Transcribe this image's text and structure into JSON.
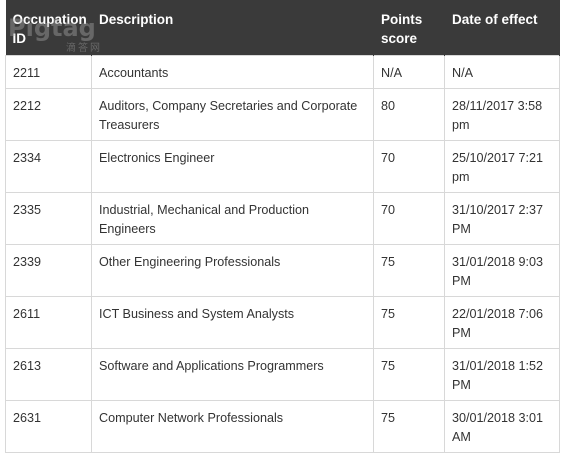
{
  "table": {
    "headers": [
      "Occupation ID",
      "Description",
      "Points score",
      "Date of effect"
    ],
    "rows": [
      {
        "id": "2211",
        "description": "Accountants",
        "points": "N/A",
        "date": "N/A"
      },
      {
        "id": "2212",
        "description": "Auditors, Company Secretaries and Corporate Treasurers",
        "points": "80",
        "date": "28/11/2017 3:58 pm"
      },
      {
        "id": "2334",
        "description": "Electronics Engineer",
        "points": "70",
        "date": "25/10/2017 7:21 pm"
      },
      {
        "id": "2335",
        "description": "Industrial, Mechanical and Production Engineers",
        "points": "70",
        "date": "31/10/2017 2:37 PM"
      },
      {
        "id": "2339",
        "description": "Other Engineering Professionals",
        "points": "75",
        "date": "31/01/2018 9:03 PM"
      },
      {
        "id": "2611",
        "description": "ICT Business and System Analysts",
        "points": "75",
        "date": "22/01/2018 7:06 PM"
      },
      {
        "id": "2613",
        "description": "Software and Applications Programmers",
        "points": "75",
        "date": "31/01/2018 1:52 PM"
      },
      {
        "id": "2631",
        "description": "Computer Network Professionals",
        "points": "75",
        "date": "30/01/2018 3:01 AM"
      }
    ]
  },
  "watermark": {
    "main": "Pigtag",
    "sub": "滴答网"
  },
  "colors": {
    "header_bg": "#3a3a3a",
    "header_text": "#ffffff",
    "border": "#d8d8d8",
    "body_text": "#333333"
  }
}
